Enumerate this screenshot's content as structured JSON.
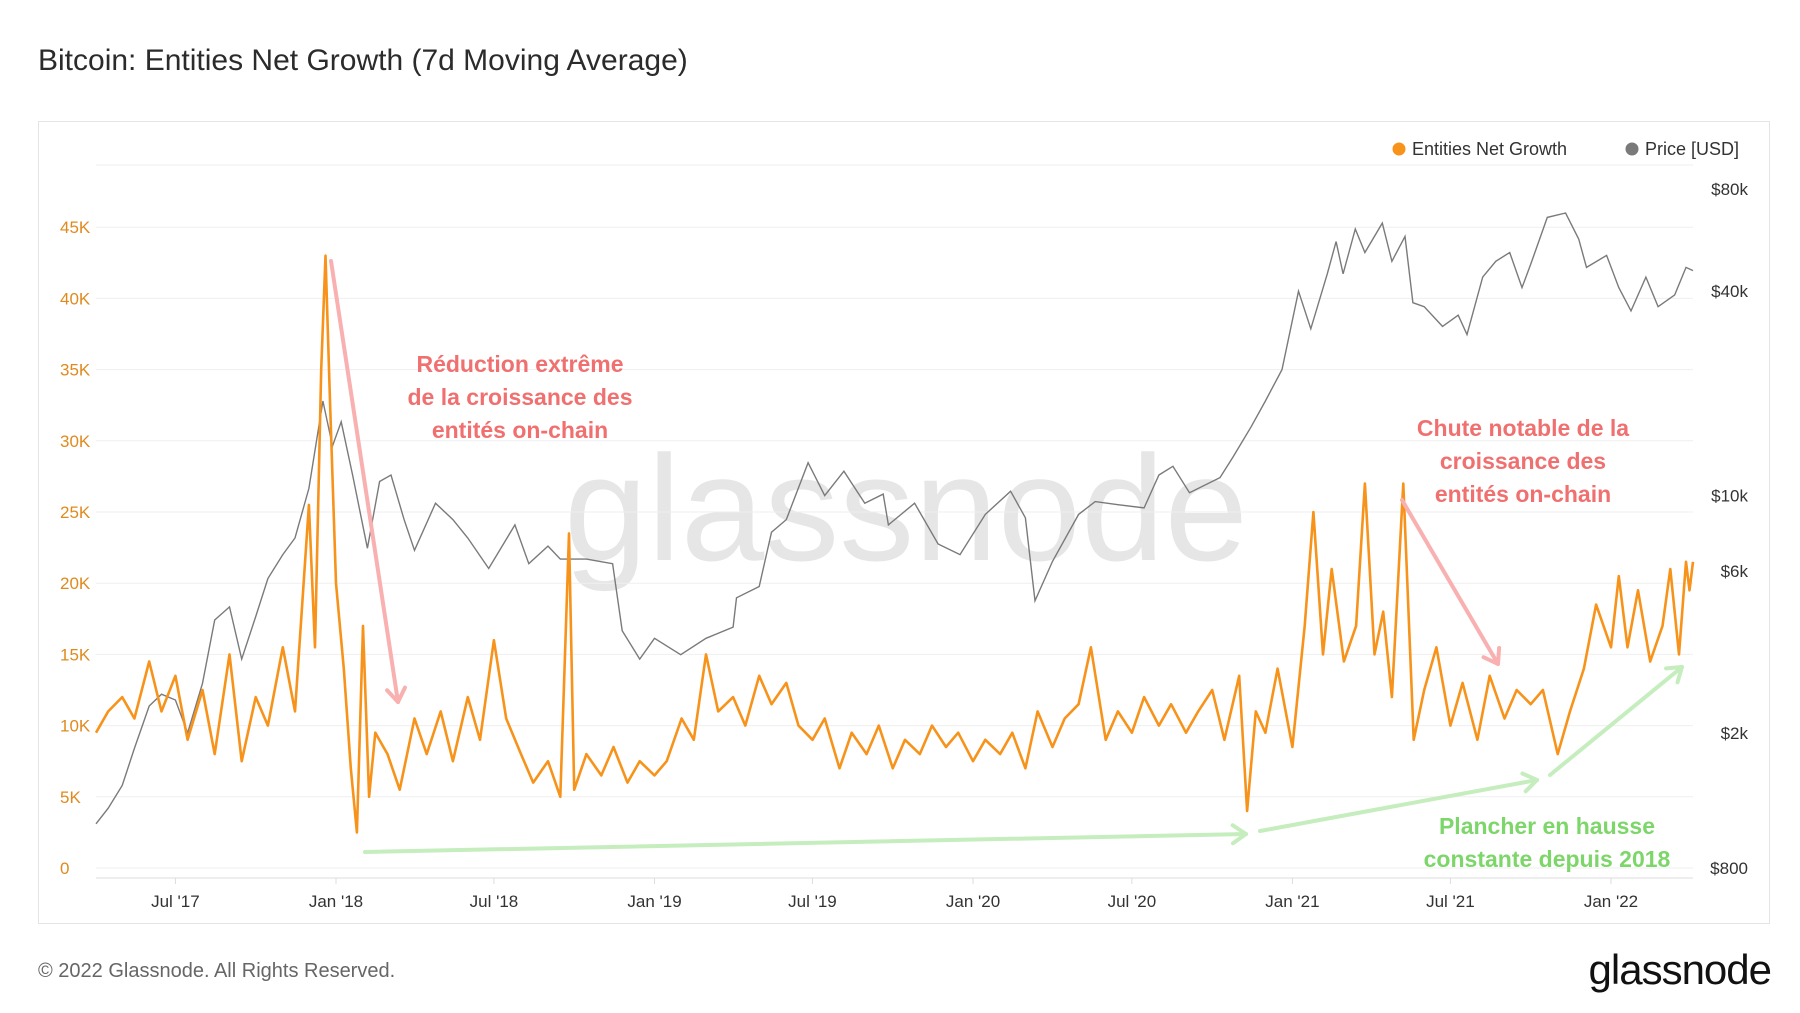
{
  "header": {
    "title": "Bitcoin: Entities Net Growth (7d Moving Average)"
  },
  "footer": {
    "copyright": "© 2022 Glassnode. All Rights Reserved.",
    "logo": "glassnode"
  },
  "watermark": "glassnode",
  "colors": {
    "entities": "#f7931a",
    "price": "#7a7a7a",
    "left_axis": "#e08a1e",
    "red_annotation": "#f07070",
    "red_arrow": "#f9b0b0",
    "green_annotation": "#7dd66a",
    "green_arrow": "#c5edbd"
  },
  "chart_data": {
    "type": "line",
    "title": "Bitcoin: Entities Net Growth (7d Moving Average)",
    "legend": {
      "placement": "top-right",
      "entries": [
        "Entities Net Growth",
        "Price [USD]"
      ]
    },
    "grid": true,
    "x_range": [
      "2017-04-01",
      "2022-04-05"
    ],
    "x_ticks": [
      {
        "date": "2017-07-01",
        "label": "Jul '17"
      },
      {
        "date": "2018-01-01",
        "label": "Jan '18"
      },
      {
        "date": "2018-07-01",
        "label": "Jul '18"
      },
      {
        "date": "2019-01-01",
        "label": "Jan '19"
      },
      {
        "date": "2019-07-01",
        "label": "Jul '19"
      },
      {
        "date": "2020-01-01",
        "label": "Jan '20"
      },
      {
        "date": "2020-07-01",
        "label": "Jul '20"
      },
      {
        "date": "2021-01-01",
        "label": "Jan '21"
      },
      {
        "date": "2021-07-01",
        "label": "Jul '21"
      },
      {
        "date": "2022-01-01",
        "label": "Jan '22"
      }
    ],
    "y_left": {
      "ylim": [
        0,
        50000
      ],
      "ticks": [
        0,
        5000,
        10000,
        15000,
        20000,
        25000,
        30000,
        35000,
        40000,
        45000
      ],
      "tick_labels": [
        "0",
        "5K",
        "10K",
        "15K",
        "20K",
        "25K",
        "30K",
        "35K",
        "40K",
        "45K"
      ]
    },
    "y_right": {
      "scale": "log",
      "ylim": [
        800,
        80000
      ],
      "ticks": [
        800,
        2000,
        6000,
        10000,
        40000,
        80000
      ],
      "tick_labels": [
        "$800",
        "$2k",
        "$6k",
        "$10k",
        "$40k",
        "$80k"
      ]
    },
    "series": [
      {
        "name": "Entities Net Growth",
        "axis": "left",
        "points": [
          [
            "2017-04-01",
            9500
          ],
          [
            "2017-04-15",
            11000
          ],
          [
            "2017-05-01",
            12000
          ],
          [
            "2017-05-15",
            10500
          ],
          [
            "2017-06-01",
            14500
          ],
          [
            "2017-06-15",
            11000
          ],
          [
            "2017-07-01",
            13500
          ],
          [
            "2017-07-15",
            9000
          ],
          [
            "2017-08-01",
            12500
          ],
          [
            "2017-08-15",
            8000
          ],
          [
            "2017-09-01",
            15000
          ],
          [
            "2017-09-15",
            7500
          ],
          [
            "2017-10-01",
            12000
          ],
          [
            "2017-10-15",
            10000
          ],
          [
            "2017-11-01",
            15500
          ],
          [
            "2017-11-15",
            11000
          ],
          [
            "2017-12-01",
            25500
          ],
          [
            "2017-12-08",
            15500
          ],
          [
            "2017-12-15",
            35000
          ],
          [
            "2017-12-20",
            43000
          ],
          [
            "2017-12-25",
            33000
          ],
          [
            "2018-01-01",
            20000
          ],
          [
            "2018-01-10",
            14000
          ],
          [
            "2018-01-18",
            7000
          ],
          [
            "2018-01-25",
            2500
          ],
          [
            "2018-02-01",
            17000
          ],
          [
            "2018-02-08",
            5000
          ],
          [
            "2018-02-15",
            9500
          ],
          [
            "2018-03-01",
            8000
          ],
          [
            "2018-03-15",
            5500
          ],
          [
            "2018-04-01",
            10500
          ],
          [
            "2018-04-15",
            8000
          ],
          [
            "2018-05-01",
            11000
          ],
          [
            "2018-05-15",
            7500
          ],
          [
            "2018-06-01",
            12000
          ],
          [
            "2018-06-15",
            9000
          ],
          [
            "2018-07-01",
            16000
          ],
          [
            "2018-07-15",
            10500
          ],
          [
            "2018-08-01",
            8000
          ],
          [
            "2018-08-15",
            6000
          ],
          [
            "2018-09-01",
            7500
          ],
          [
            "2018-09-15",
            5000
          ],
          [
            "2018-09-25",
            23500
          ],
          [
            "2018-10-01",
            5500
          ],
          [
            "2018-10-15",
            8000
          ],
          [
            "2018-11-01",
            6500
          ],
          [
            "2018-11-15",
            8500
          ],
          [
            "2018-12-01",
            6000
          ],
          [
            "2018-12-15",
            7500
          ],
          [
            "2019-01-01",
            6500
          ],
          [
            "2019-01-15",
            7500
          ],
          [
            "2019-02-01",
            10500
          ],
          [
            "2019-02-15",
            9000
          ],
          [
            "2019-03-01",
            15000
          ],
          [
            "2019-03-15",
            11000
          ],
          [
            "2019-04-01",
            12000
          ],
          [
            "2019-04-15",
            10000
          ],
          [
            "2019-05-01",
            13500
          ],
          [
            "2019-05-15",
            11500
          ],
          [
            "2019-06-01",
            13000
          ],
          [
            "2019-06-15",
            10000
          ],
          [
            "2019-07-01",
            9000
          ],
          [
            "2019-07-15",
            10500
          ],
          [
            "2019-08-01",
            7000
          ],
          [
            "2019-08-15",
            9500
          ],
          [
            "2019-09-01",
            8000
          ],
          [
            "2019-09-15",
            10000
          ],
          [
            "2019-10-01",
            7000
          ],
          [
            "2019-10-15",
            9000
          ],
          [
            "2019-11-01",
            8000
          ],
          [
            "2019-11-15",
            10000
          ],
          [
            "2019-12-01",
            8500
          ],
          [
            "2019-12-15",
            9500
          ],
          [
            "2020-01-01",
            7500
          ],
          [
            "2020-01-15",
            9000
          ],
          [
            "2020-02-01",
            8000
          ],
          [
            "2020-02-15",
            9500
          ],
          [
            "2020-03-01",
            7000
          ],
          [
            "2020-03-15",
            11000
          ],
          [
            "2020-04-01",
            8500
          ],
          [
            "2020-04-15",
            10500
          ],
          [
            "2020-05-01",
            11500
          ],
          [
            "2020-05-15",
            15500
          ],
          [
            "2020-06-01",
            9000
          ],
          [
            "2020-06-15",
            11000
          ],
          [
            "2020-07-01",
            9500
          ],
          [
            "2020-07-15",
            12000
          ],
          [
            "2020-08-01",
            10000
          ],
          [
            "2020-08-15",
            11500
          ],
          [
            "2020-09-01",
            9500
          ],
          [
            "2020-09-15",
            11000
          ],
          [
            "2020-10-01",
            12500
          ],
          [
            "2020-10-15",
            9000
          ],
          [
            "2020-11-01",
            13500
          ],
          [
            "2020-11-10",
            4000
          ],
          [
            "2020-11-20",
            11000
          ],
          [
            "2020-12-01",
            9500
          ],
          [
            "2020-12-15",
            14000
          ],
          [
            "2021-01-01",
            8500
          ],
          [
            "2021-01-15",
            17000
          ],
          [
            "2021-01-25",
            25000
          ],
          [
            "2021-02-05",
            15000
          ],
          [
            "2021-02-15",
            21000
          ],
          [
            "2021-03-01",
            14500
          ],
          [
            "2021-03-15",
            17000
          ],
          [
            "2021-03-25",
            27000
          ],
          [
            "2021-04-05",
            15000
          ],
          [
            "2021-04-15",
            18000
          ],
          [
            "2021-04-25",
            12000
          ],
          [
            "2021-05-08",
            27000
          ],
          [
            "2021-05-20",
            9000
          ],
          [
            "2021-06-01",
            12500
          ],
          [
            "2021-06-15",
            15500
          ],
          [
            "2021-07-01",
            10000
          ],
          [
            "2021-07-15",
            13000
          ],
          [
            "2021-08-01",
            9000
          ],
          [
            "2021-08-15",
            13500
          ],
          [
            "2021-09-01",
            10500
          ],
          [
            "2021-09-15",
            12500
          ],
          [
            "2021-10-01",
            11500
          ],
          [
            "2021-10-15",
            12500
          ],
          [
            "2021-11-01",
            8000
          ],
          [
            "2021-11-15",
            11000
          ],
          [
            "2021-12-01",
            14000
          ],
          [
            "2021-12-15",
            18500
          ],
          [
            "2022-01-01",
            15500
          ],
          [
            "2022-01-10",
            20500
          ],
          [
            "2022-01-20",
            15500
          ],
          [
            "2022-02-01",
            19500
          ],
          [
            "2022-02-15",
            14500
          ],
          [
            "2022-03-01",
            17000
          ],
          [
            "2022-03-10",
            21000
          ],
          [
            "2022-03-20",
            15000
          ],
          [
            "2022-03-28",
            21500
          ],
          [
            "2022-04-01",
            19500
          ],
          [
            "2022-04-05",
            21500
          ]
        ]
      },
      {
        "name": "Price [USD]",
        "axis": "right",
        "points": [
          [
            "2017-04-01",
            1080
          ],
          [
            "2017-04-15",
            1200
          ],
          [
            "2017-05-01",
            1400
          ],
          [
            "2017-05-15",
            1800
          ],
          [
            "2017-06-01",
            2400
          ],
          [
            "2017-06-15",
            2600
          ],
          [
            "2017-07-01",
            2500
          ],
          [
            "2017-07-15",
            2000
          ],
          [
            "2017-08-01",
            2800
          ],
          [
            "2017-08-15",
            4300
          ],
          [
            "2017-09-01",
            4700
          ],
          [
            "2017-09-15",
            3300
          ],
          [
            "2017-10-01",
            4400
          ],
          [
            "2017-10-15",
            5700
          ],
          [
            "2017-11-01",
            6700
          ],
          [
            "2017-11-15",
            7500
          ],
          [
            "2017-12-01",
            10500
          ],
          [
            "2017-12-17",
            19000
          ],
          [
            "2017-12-28",
            14000
          ],
          [
            "2018-01-07",
            16500
          ],
          [
            "2018-01-20",
            11500
          ],
          [
            "2018-02-06",
            7000
          ],
          [
            "2018-02-20",
            11000
          ],
          [
            "2018-03-05",
            11500
          ],
          [
            "2018-03-20",
            8500
          ],
          [
            "2018-04-01",
            6900
          ],
          [
            "2018-04-25",
            9500
          ],
          [
            "2018-05-15",
            8500
          ],
          [
            "2018-06-01",
            7500
          ],
          [
            "2018-06-25",
            6100
          ],
          [
            "2018-07-25",
            8200
          ],
          [
            "2018-08-10",
            6300
          ],
          [
            "2018-09-01",
            7100
          ],
          [
            "2018-09-15",
            6500
          ],
          [
            "2018-10-15",
            6500
          ],
          [
            "2018-11-14",
            6300
          ],
          [
            "2018-11-25",
            4000
          ],
          [
            "2018-12-15",
            3300
          ],
          [
            "2019-01-01",
            3800
          ],
          [
            "2019-01-31",
            3400
          ],
          [
            "2019-03-01",
            3800
          ],
          [
            "2019-04-01",
            4100
          ],
          [
            "2019-04-05",
            5000
          ],
          [
            "2019-05-01",
            5400
          ],
          [
            "2019-05-15",
            7800
          ],
          [
            "2019-06-01",
            8500
          ],
          [
            "2019-06-26",
            12500
          ],
          [
            "2019-07-15",
            10000
          ],
          [
            "2019-08-06",
            11800
          ],
          [
            "2019-08-30",
            9500
          ],
          [
            "2019-09-20",
            10100
          ],
          [
            "2019-09-26",
            8200
          ],
          [
            "2019-10-26",
            9500
          ],
          [
            "2019-11-22",
            7200
          ],
          [
            "2019-12-17",
            6700
          ],
          [
            "2020-01-15",
            8800
          ],
          [
            "2020-02-13",
            10300
          ],
          [
            "2020-03-01",
            8600
          ],
          [
            "2020-03-12",
            4900
          ],
          [
            "2020-04-01",
            6400
          ],
          [
            "2020-05-01",
            8800
          ],
          [
            "2020-05-20",
            9600
          ],
          [
            "2020-06-15",
            9400
          ],
          [
            "2020-07-15",
            9200
          ],
          [
            "2020-08-01",
            11500
          ],
          [
            "2020-08-17",
            12200
          ],
          [
            "2020-09-05",
            10200
          ],
          [
            "2020-10-10",
            11300
          ],
          [
            "2020-10-25",
            13000
          ],
          [
            "2020-11-15",
            16000
          ],
          [
            "2020-12-01",
            19000
          ],
          [
            "2020-12-20",
            23500
          ],
          [
            "2021-01-08",
            40000
          ],
          [
            "2021-01-22",
            31000
          ],
          [
            "2021-02-10",
            45000
          ],
          [
            "2021-02-20",
            56000
          ],
          [
            "2021-02-28",
            45000
          ],
          [
            "2021-03-14",
            61000
          ],
          [
            "2021-03-25",
            52000
          ],
          [
            "2021-04-14",
            63500
          ],
          [
            "2021-04-25",
            49000
          ],
          [
            "2021-05-10",
            58000
          ],
          [
            "2021-05-19",
            37000
          ],
          [
            "2021-06-01",
            36000
          ],
          [
            "2021-06-22",
            31500
          ],
          [
            "2021-07-10",
            34000
          ],
          [
            "2021-07-20",
            29800
          ],
          [
            "2021-08-07",
            44000
          ],
          [
            "2021-08-22",
            49000
          ],
          [
            "2021-09-07",
            52000
          ],
          [
            "2021-09-21",
            41000
          ],
          [
            "2021-10-01",
            48000
          ],
          [
            "2021-10-20",
            66000
          ],
          [
            "2021-11-10",
            68000
          ],
          [
            "2021-11-25",
            57000
          ],
          [
            "2021-12-04",
            47000
          ],
          [
            "2021-12-27",
            51000
          ],
          [
            "2022-01-10",
            41000
          ],
          [
            "2022-01-24",
            35000
          ],
          [
            "2022-02-10",
            44000
          ],
          [
            "2022-02-24",
            36000
          ],
          [
            "2022-03-15",
            39000
          ],
          [
            "2022-03-28",
            47000
          ],
          [
            "2022-04-05",
            46000
          ]
        ]
      }
    ],
    "annotations": [
      {
        "lines": [
          "Réduction extrême",
          "de la croissance des",
          "entités on-chain"
        ],
        "color": "red"
      },
      {
        "lines": [
          "Chute notable de la",
          "croissance des",
          "entités on-chain"
        ],
        "color": "red"
      },
      {
        "lines": [
          "Plancher en hausse",
          "constante depuis 2018"
        ],
        "color": "green"
      }
    ]
  }
}
